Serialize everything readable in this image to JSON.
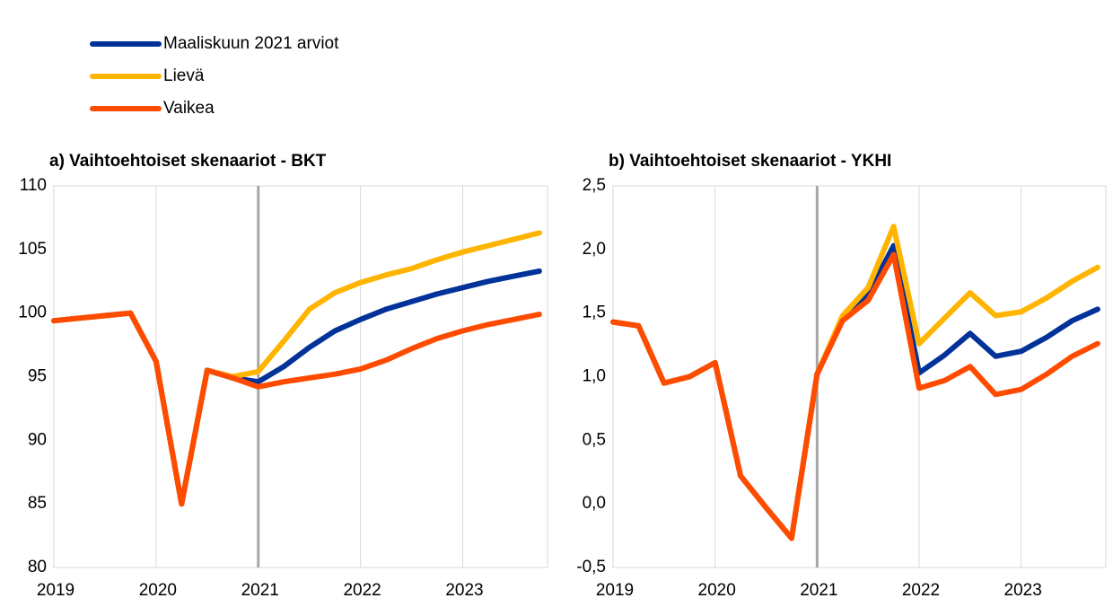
{
  "chart_data": [
    {
      "type": "line",
      "title": "a) Vaihtoehtoiset skenaariot - BKT",
      "x": [
        2019,
        2019.25,
        2019.5,
        2019.75,
        2020,
        2020.25,
        2020.5,
        2020.75,
        2021,
        2021.25,
        2021.5,
        2021.75,
        2022,
        2022.25,
        2022.5,
        2022.75,
        2023,
        2023.25,
        2023.5,
        2023.75
      ],
      "series": [
        {
          "name": "Maaliskuun 2021 arviot",
          "color": "#003299",
          "values": [
            99.4,
            99.6,
            99.8,
            100.0,
            96.2,
            85.0,
            95.5,
            94.9,
            94.6,
            95.8,
            97.3,
            98.6,
            99.5,
            100.3,
            100.9,
            101.5,
            102.0,
            102.5,
            102.9,
            103.3
          ]
        },
        {
          "name": "Lievä",
          "color": "#ffb400",
          "values": [
            99.4,
            99.6,
            99.8,
            100.0,
            96.2,
            85.0,
            95.5,
            95.0,
            95.4,
            97.8,
            100.3,
            101.6,
            102.4,
            103.0,
            103.5,
            104.2,
            104.8,
            105.3,
            105.8,
            106.3
          ]
        },
        {
          "name": "Vaikea",
          "color": "#ff4b00",
          "values": [
            99.4,
            99.6,
            99.8,
            100.0,
            96.2,
            85.0,
            95.5,
            94.9,
            94.2,
            94.6,
            94.9,
            95.2,
            95.6,
            96.3,
            97.2,
            98.0,
            98.6,
            99.1,
            99.5,
            99.9
          ]
        }
      ],
      "xlim": [
        2019,
        2023.83
      ],
      "xticks": [
        2019,
        2020,
        2021,
        2022,
        2023
      ],
      "ylim": [
        80,
        110
      ],
      "yticks": [
        80,
        85,
        90,
        95,
        100,
        105,
        110
      ],
      "vline": 2021,
      "grid": true
    },
    {
      "type": "line",
      "title": "b) Vaihtoehtoiset skenaariot - YKHI",
      "x": [
        2019,
        2019.25,
        2019.5,
        2019.75,
        2020,
        2020.25,
        2020.5,
        2020.75,
        2021,
        2021.25,
        2021.5,
        2021.75,
        2022,
        2022.25,
        2022.5,
        2022.75,
        2023,
        2023.25,
        2023.5,
        2023.75
      ],
      "series": [
        {
          "color": "#003299",
          "values": [
            1.43,
            1.4,
            0.95,
            1.0,
            1.11,
            0.22,
            -0.03,
            -0.27,
            1.02,
            1.45,
            1.65,
            2.03,
            1.03,
            1.17,
            1.34,
            1.16,
            1.2,
            1.31,
            1.44,
            1.53
          ]
        },
        {
          "color": "#ffb400",
          "values": [
            1.43,
            1.4,
            0.95,
            1.0,
            1.11,
            0.22,
            -0.03,
            -0.27,
            1.02,
            1.48,
            1.7,
            2.18,
            1.26,
            1.46,
            1.66,
            1.48,
            1.51,
            1.62,
            1.75,
            1.86
          ]
        },
        {
          "color": "#ff4b00",
          "values": [
            1.43,
            1.4,
            0.95,
            1.0,
            1.11,
            0.22,
            -0.03,
            -0.27,
            1.02,
            1.44,
            1.6,
            1.96,
            0.91,
            0.97,
            1.08,
            0.86,
            0.9,
            1.02,
            1.16,
            1.26
          ]
        }
      ],
      "xlim": [
        2019,
        2023.83
      ],
      "xticks": [
        2019,
        2020,
        2021,
        2022,
        2023
      ],
      "ylim": [
        -0.5,
        2.5
      ],
      "yticks": [
        {
          "value": -0.5,
          "label": "-0,5"
        },
        {
          "value": 0,
          "label": "0,0"
        },
        {
          "value": 0.5,
          "label": "0,5"
        },
        {
          "value": 1,
          "label": "1,0"
        },
        {
          "value": 1.5,
          "label": "1,5"
        },
        {
          "value": 2,
          "label": "2,0"
        },
        {
          "value": 2.5,
          "label": "2,5"
        }
      ],
      "vline": 2021,
      "grid": true
    }
  ]
}
